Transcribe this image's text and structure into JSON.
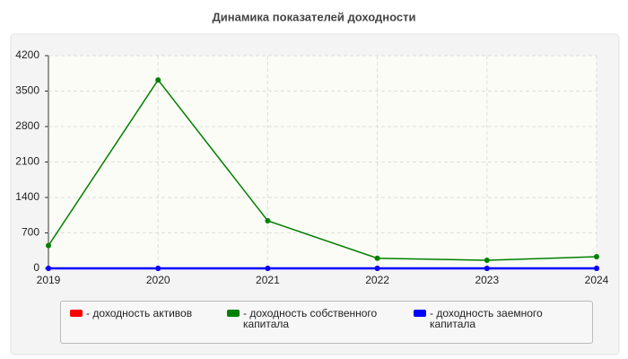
{
  "chart_data": {
    "type": "line",
    "title": "Динамика показателей доходности",
    "categories": [
      "2019",
      "2020",
      "2021",
      "2022",
      "2023",
      "2024"
    ],
    "series": [
      {
        "name": "- доходность активов",
        "color": "#ff0000",
        "values": [
          0,
          0,
          0,
          0,
          0,
          0
        ]
      },
      {
        "name": "- доходность собственного капитала",
        "color": "#008000",
        "values": [
          450,
          3720,
          940,
          200,
          160,
          230
        ]
      },
      {
        "name": "- доходность заемного капитала",
        "color": "#0000ff",
        "values": [
          0,
          0,
          0,
          0,
          0,
          0
        ]
      }
    ],
    "ylim": [
      0,
      4200
    ],
    "yticks": [
      0,
      700,
      1400,
      2100,
      2800,
      3500,
      4200
    ],
    "grid": true
  }
}
